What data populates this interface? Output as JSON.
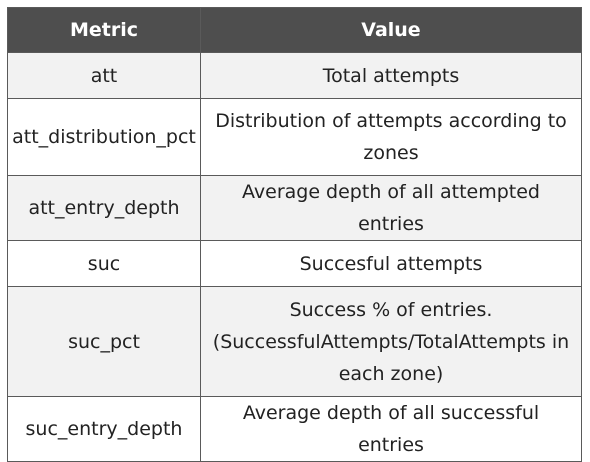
{
  "table": {
    "headers": [
      "Metric",
      "Value"
    ],
    "rows": [
      {
        "metric": "att",
        "value": "Total attempts"
      },
      {
        "metric": "att_distribution_pct",
        "value": "Distribution of attempts according to zones"
      },
      {
        "metric": "att_entry_depth",
        "value": "Average depth of all attempted entries"
      },
      {
        "metric": "suc",
        "value": "Succesful attempts"
      },
      {
        "metric": "suc_pct",
        "value": "Success % of entries. (SuccessfulAttempts/TotalAttempts in each zone)"
      },
      {
        "metric": "suc_entry_depth",
        "value": "Average depth of all successful entries"
      }
    ]
  },
  "colors": {
    "header_bg": "#4e4e4e",
    "header_text": "#ffffff",
    "row_alt_bg": "#f2f2f2",
    "border": "#5a5a5a"
  }
}
